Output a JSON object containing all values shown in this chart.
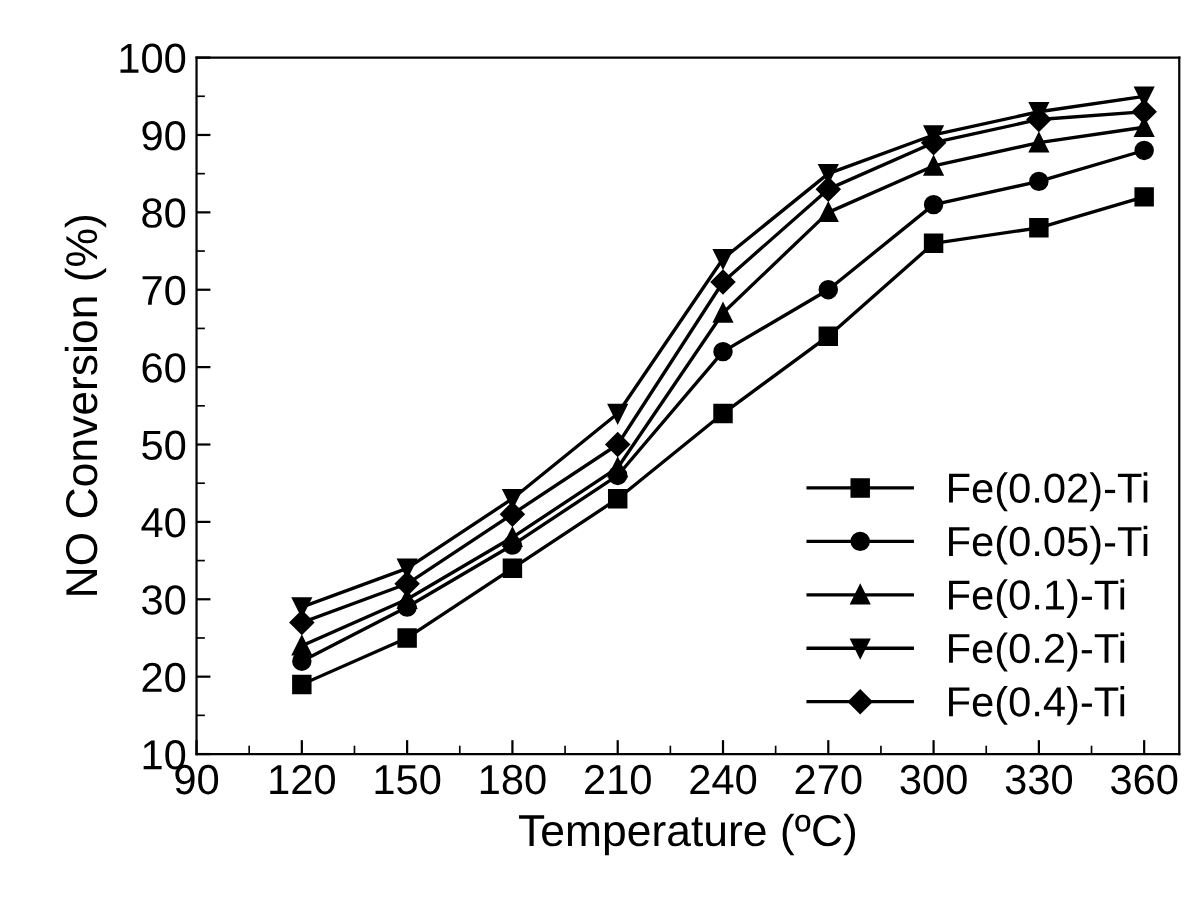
{
  "chart_data": {
    "type": "line",
    "xlabel": "Temperature (ºC)",
    "ylabel": "NO Conversion (%)",
    "x": [
      120,
      150,
      180,
      210,
      240,
      270,
      300,
      330,
      360
    ],
    "xlim": [
      90,
      370
    ],
    "xticks": [
      90,
      120,
      150,
      180,
      210,
      240,
      270,
      300,
      330,
      360
    ],
    "ylim": [
      10,
      100
    ],
    "yticks": [
      10,
      20,
      30,
      40,
      50,
      60,
      70,
      80,
      90,
      100
    ],
    "grid": false,
    "legend": "bottom right",
    "line_style": "solid",
    "series": [
      {
        "name": "Fe(0.02)-Ti",
        "color": "#000000",
        "marker": "square",
        "values": [
          19,
          25,
          34,
          43,
          54,
          64,
          76,
          78,
          82
        ]
      },
      {
        "name": "Fe(0.05)-Ti",
        "color": "#000000",
        "marker": "circle",
        "values": [
          22,
          29,
          37,
          46,
          62,
          70,
          81,
          84,
          88
        ]
      },
      {
        "name": "Fe(0.1)-Ti",
        "color": "#000000",
        "marker": "triangle",
        "values": [
          24,
          30,
          38,
          47,
          67,
          80,
          86,
          89,
          91
        ]
      },
      {
        "name": "Fe(0.2)-Ti",
        "color": "#000000",
        "marker": "triangle-down",
        "values": [
          29,
          34,
          43,
          54,
          74,
          85,
          90,
          93,
          95
        ]
      },
      {
        "name": "Fe(0.4)-Ti",
        "color": "#000000",
        "marker": "diamond",
        "values": [
          27,
          32,
          41,
          50,
          71,
          83,
          89,
          92,
          93
        ]
      }
    ]
  }
}
